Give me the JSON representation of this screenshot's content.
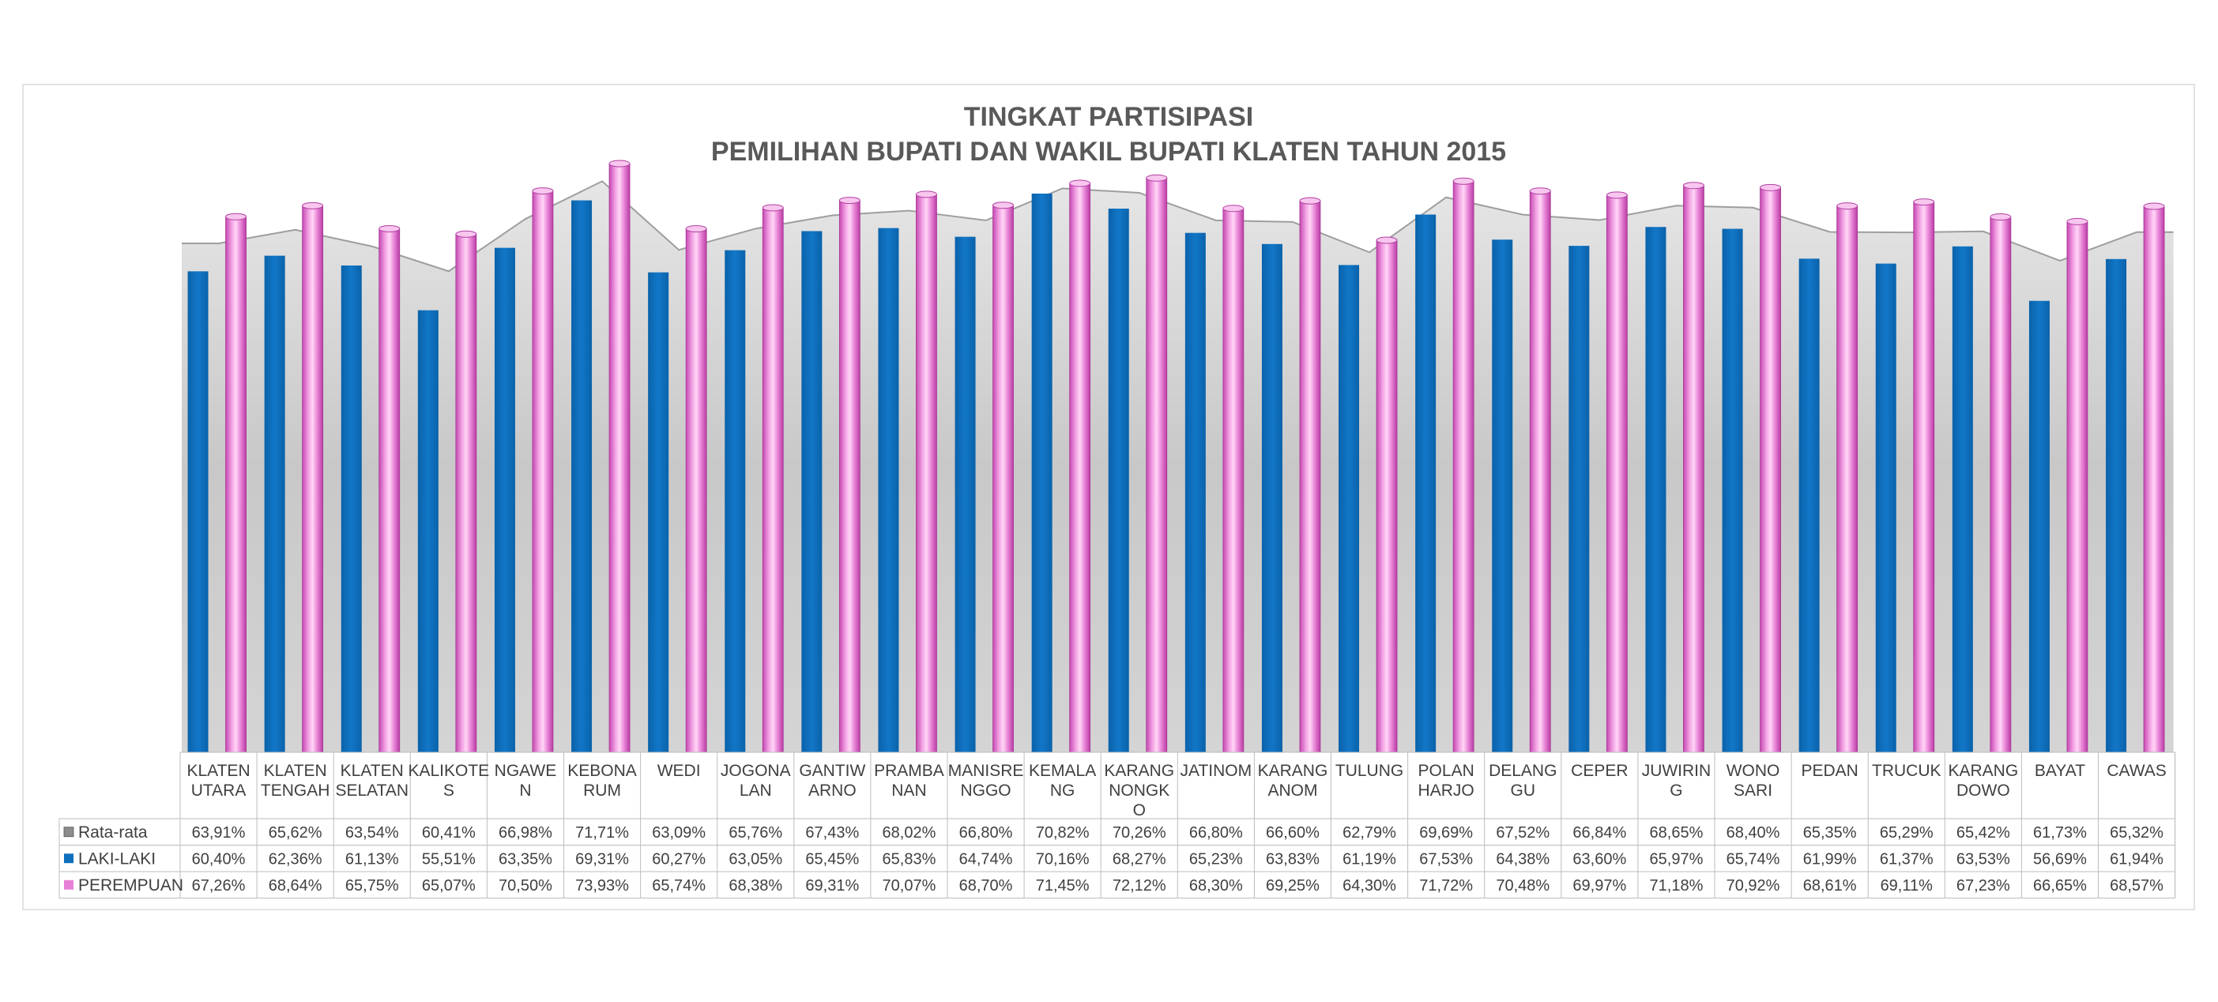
{
  "chart_data": {
    "type": "bar",
    "title": "TINGKAT PARTISIPASI",
    "subtitle": "PEMILIHAN BUPATI DAN WAKIL BUPATI KLATEN TAHUN 2015",
    "xlabel": "",
    "ylabel": "",
    "ylim": [
      0,
      0.78
    ],
    "grid": false,
    "legend": "table-left",
    "categories": [
      [
        "KLATEN",
        "UTARA"
      ],
      [
        "KLATEN",
        "TENGAH"
      ],
      [
        "KLATEN",
        "SELATAN"
      ],
      [
        "KALIKOTE",
        "S"
      ],
      [
        "NGAWE",
        "N"
      ],
      [
        "KEBONA",
        "RUM"
      ],
      [
        "WEDI"
      ],
      [
        "JOGONA",
        "LAN"
      ],
      [
        "GANTIW",
        "ARNO"
      ],
      [
        "PRAMBA",
        "NAN"
      ],
      [
        "MANISRE",
        "NGGO"
      ],
      [
        "KEMALA",
        "NG"
      ],
      [
        "KARANG",
        "NONGK",
        "O"
      ],
      [
        "JATINOM"
      ],
      [
        "KARANG",
        "ANOM"
      ],
      [
        "TULUNG"
      ],
      [
        "POLAN",
        "HARJO"
      ],
      [
        "DELANG",
        "GU"
      ],
      [
        "CEPER"
      ],
      [
        "JUWIRIN",
        "G"
      ],
      [
        "WONO",
        "SARI"
      ],
      [
        "PEDAN"
      ],
      [
        "TRUCUK"
      ],
      [
        "KARANG",
        "DOWO"
      ],
      [
        "BAYAT"
      ],
      [
        "CAWAS"
      ]
    ],
    "series": [
      {
        "name": "Rata-rata",
        "type": "area",
        "color": "#cfcfcf",
        "values": [
          63.91,
          65.62,
          63.54,
          60.41,
          66.98,
          71.71,
          63.09,
          65.76,
          67.43,
          68.02,
          66.8,
          70.82,
          70.26,
          66.8,
          66.6,
          62.79,
          69.69,
          67.52,
          66.84,
          68.65,
          68.4,
          65.35,
          65.29,
          65.42,
          61.73,
          65.32
        ],
        "labels": [
          "63,91%",
          "65,62%",
          "63,54%",
          "60,41%",
          "66,98%",
          "71,71%",
          "63,09%",
          "65,76%",
          "67,43%",
          "68,02%",
          "66,80%",
          "70,82%",
          "70,26%",
          "66,80%",
          "66,60%",
          "62,79%",
          "69,69%",
          "67,52%",
          "66,84%",
          "68,65%",
          "68,40%",
          "65,35%",
          "65,29%",
          "65,42%",
          "61,73%",
          "65,32%"
        ]
      },
      {
        "name": "LAKI-LAKI",
        "type": "bar",
        "color": "#0e6fbd",
        "values": [
          60.4,
          62.36,
          61.13,
          55.51,
          63.35,
          69.31,
          60.27,
          63.05,
          65.45,
          65.83,
          64.74,
          70.16,
          68.27,
          65.23,
          63.83,
          61.19,
          67.53,
          64.38,
          63.6,
          65.97,
          65.74,
          61.99,
          61.37,
          63.53,
          56.69,
          61.94
        ],
        "labels": [
          "60,40%",
          "62,36%",
          "61,13%",
          "55,51%",
          "63,35%",
          "69,31%",
          "60,27%",
          "63,05%",
          "65,45%",
          "65,83%",
          "64,74%",
          "70,16%",
          "68,27%",
          "65,23%",
          "63,83%",
          "61,19%",
          "67,53%",
          "64,38%",
          "63,60%",
          "65,97%",
          "65,74%",
          "61,99%",
          "61,37%",
          "63,53%",
          "56,69%",
          "61,94%"
        ]
      },
      {
        "name": "PEREMPUAN",
        "type": "cylinder",
        "color": "#e77fd6",
        "values": [
          67.26,
          68.64,
          65.75,
          65.07,
          70.5,
          73.93,
          65.74,
          68.38,
          69.31,
          70.07,
          68.7,
          71.45,
          72.12,
          68.3,
          69.25,
          64.3,
          71.72,
          70.48,
          69.97,
          71.18,
          70.92,
          68.61,
          69.11,
          67.23,
          66.65,
          68.57
        ],
        "labels": [
          "67,26%",
          "68,64%",
          "65,75%",
          "65,07%",
          "70,50%",
          "73,93%",
          "65,74%",
          "68,38%",
          "69,31%",
          "70,07%",
          "68,70%",
          "71,45%",
          "72,12%",
          "68,30%",
          "69,25%",
          "64,30%",
          "71,72%",
          "70,48%",
          "69,97%",
          "71,18%",
          "70,92%",
          "68,61%",
          "69,11%",
          "67,23%",
          "66,65%",
          "68,57%"
        ]
      }
    ]
  }
}
